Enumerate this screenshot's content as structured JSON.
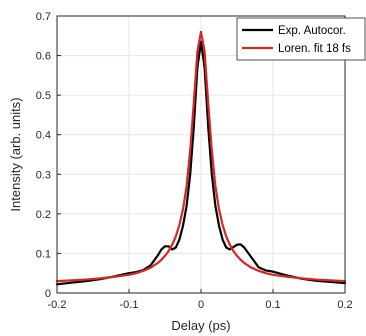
{
  "chart_data": {
    "type": "line",
    "xlabel": "Delay (ps)",
    "ylabel": "Intensity (arb. units)",
    "xlim": [
      -0.2,
      0.2
    ],
    "ylim": [
      0,
      0.7
    ],
    "xticks": [
      -0.2,
      -0.1,
      0,
      0.1,
      0.2
    ],
    "xtick_labels": [
      "-0.2",
      "-0.1",
      "0",
      "0.1",
      "0.2"
    ],
    "yticks": [
      0,
      0.1,
      0.2,
      0.3,
      0.4,
      0.5,
      0.6,
      0.7
    ],
    "ytick_labels": [
      "0",
      "0.1",
      "0.2",
      "0.3",
      "0.4",
      "0.5",
      "0.6",
      "0.7"
    ],
    "grid": true,
    "legend_position": "top-right",
    "series": [
      {
        "name": "Exp. Autocor.",
        "color": "#000000",
        "x": [
          -0.2,
          -0.18,
          -0.16,
          -0.14,
          -0.12,
          -0.1,
          -0.09,
          -0.08,
          -0.07,
          -0.06,
          -0.055,
          -0.05,
          -0.045,
          -0.04,
          -0.035,
          -0.03,
          -0.025,
          -0.02,
          -0.015,
          -0.01,
          -0.005,
          0,
          0.005,
          0.01,
          0.015,
          0.02,
          0.025,
          0.03,
          0.035,
          0.04,
          0.045,
          0.05,
          0.055,
          0.06,
          0.07,
          0.08,
          0.09,
          0.1,
          0.12,
          0.14,
          0.16,
          0.18,
          0.2
        ],
        "y": [
          0.022,
          0.026,
          0.03,
          0.035,
          0.042,
          0.05,
          0.053,
          0.058,
          0.07,
          0.095,
          0.11,
          0.118,
          0.118,
          0.11,
          0.115,
          0.135,
          0.17,
          0.22,
          0.3,
          0.42,
          0.57,
          0.635,
          0.57,
          0.42,
          0.3,
          0.22,
          0.17,
          0.135,
          0.115,
          0.11,
          0.116,
          0.122,
          0.123,
          0.115,
          0.09,
          0.065,
          0.057,
          0.054,
          0.044,
          0.036,
          0.031,
          0.028,
          0.025
        ]
      },
      {
        "name": "Loren. fit 18 fs",
        "color": "#d62728",
        "x": [
          -0.2,
          -0.18,
          -0.16,
          -0.14,
          -0.12,
          -0.1,
          -0.09,
          -0.08,
          -0.07,
          -0.06,
          -0.055,
          -0.05,
          -0.045,
          -0.04,
          -0.035,
          -0.03,
          -0.025,
          -0.02,
          -0.015,
          -0.01,
          -0.005,
          0,
          0.005,
          0.01,
          0.015,
          0.02,
          0.025,
          0.03,
          0.035,
          0.04,
          0.045,
          0.05,
          0.055,
          0.06,
          0.07,
          0.08,
          0.09,
          0.1,
          0.12,
          0.14,
          0.16,
          0.18,
          0.2
        ],
        "y": [
          0.03,
          0.032,
          0.034,
          0.037,
          0.041,
          0.046,
          0.05,
          0.056,
          0.064,
          0.076,
          0.084,
          0.094,
          0.106,
          0.122,
          0.143,
          0.172,
          0.212,
          0.27,
          0.36,
          0.48,
          0.61,
          0.66,
          0.61,
          0.48,
          0.36,
          0.27,
          0.212,
          0.172,
          0.143,
          0.122,
          0.106,
          0.094,
          0.084,
          0.076,
          0.064,
          0.056,
          0.05,
          0.046,
          0.041,
          0.037,
          0.034,
          0.032,
          0.03
        ]
      }
    ]
  }
}
